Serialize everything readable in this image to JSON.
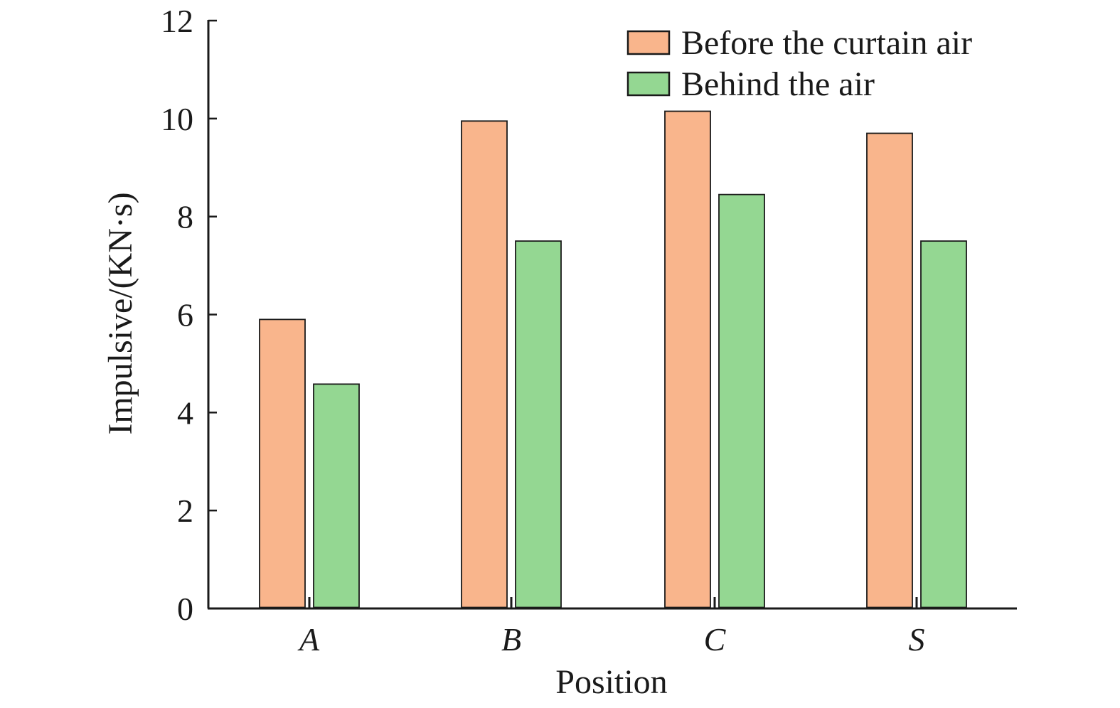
{
  "chart_data": {
    "type": "bar",
    "title": "",
    "xlabel": "Position",
    "ylabel": "Impulsive/(KN·s)",
    "categories": [
      "A",
      "B",
      "C",
      "S"
    ],
    "series": [
      {
        "name": "Before the curtain air",
        "values": [
          5.9,
          9.95,
          10.15,
          9.7
        ],
        "color": "#f9b58c"
      },
      {
        "name": "Behind the air",
        "values": [
          4.58,
          7.5,
          8.45,
          7.5
        ],
        "color": "#94d792"
      }
    ],
    "ylim": [
      0,
      12
    ],
    "yticks": [
      "0",
      "2",
      "4",
      "6",
      "8",
      "10",
      "12"
    ],
    "grid": false,
    "legend_position": "top-right"
  }
}
